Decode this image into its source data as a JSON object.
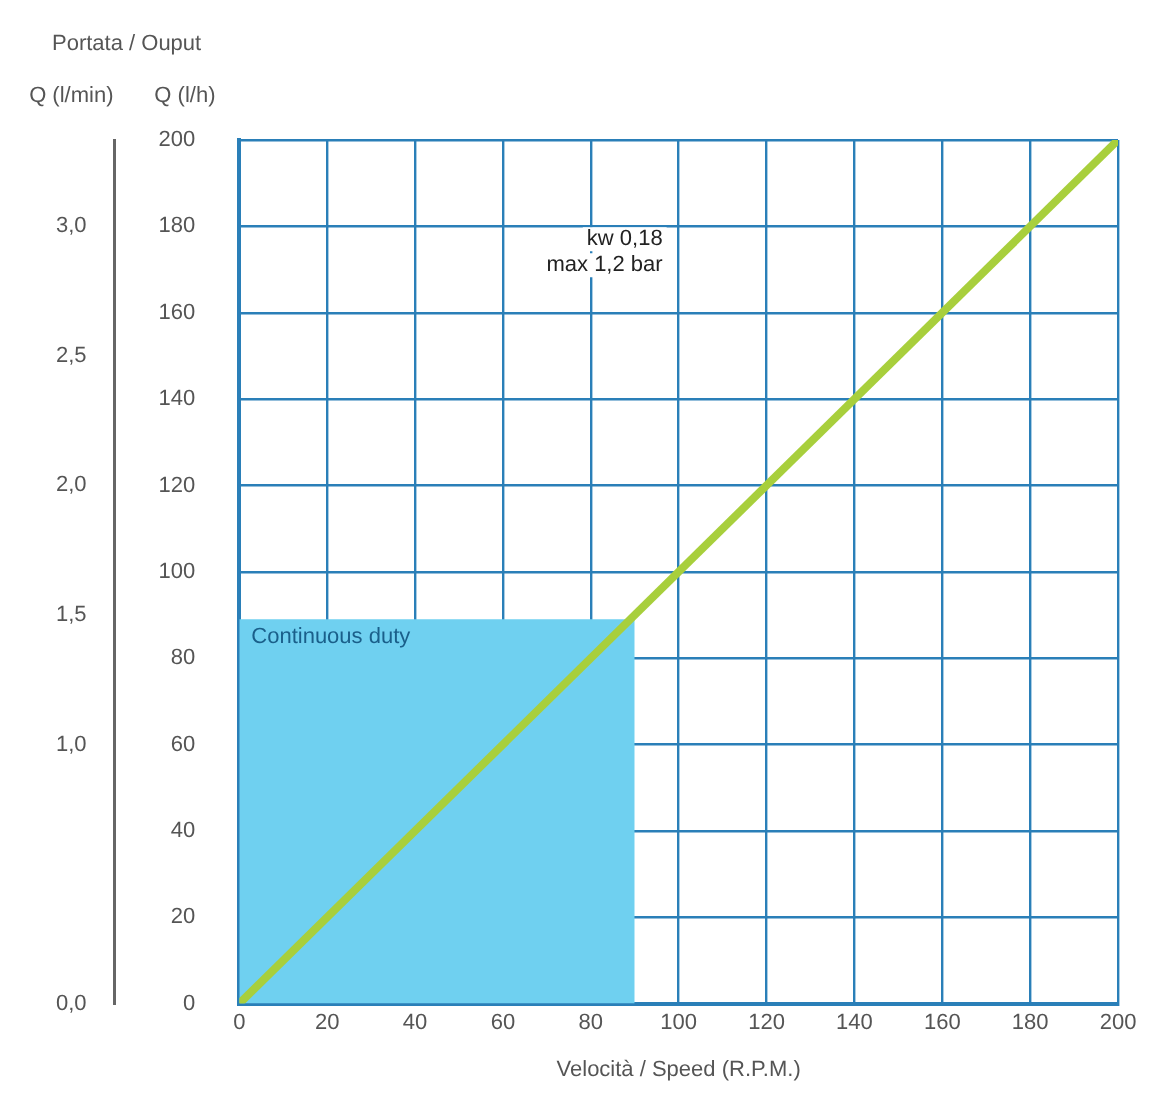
{
  "chart_data": {
    "type": "line",
    "title": "Portata / Ouput",
    "xlabel": "Velocità / Speed (R.P.M.)",
    "ylabel": "Q (l/h)",
    "y2label": "Q (l/min)",
    "annotations": [
      "kw 0,18",
      "max 1,2 bar"
    ],
    "series": [
      {
        "name": "Continuous duty",
        "type": "area",
        "color": "#6fd0f0",
        "x": [
          0,
          90
        ],
        "values": [
          89,
          89
        ]
      },
      {
        "type": "line",
        "color": "#a8cf3c",
        "x": [
          0,
          200
        ],
        "values": [
          0,
          200
        ]
      }
    ],
    "xlim": [
      0,
      200
    ],
    "xticks": [
      0,
      20,
      40,
      60,
      80,
      100,
      120,
      140,
      160,
      180,
      200
    ],
    "ylim": [
      0,
      200
    ],
    "yticks": [
      0,
      20,
      40,
      60,
      80,
      100,
      120,
      140,
      160,
      180,
      200
    ],
    "y2lim": [
      0,
      3.333
    ],
    "y2ticks": [
      {
        "value": 0,
        "label": "0,0"
      },
      {
        "value": 1,
        "label": "1,0"
      },
      {
        "value": 1.5,
        "label": "1,5"
      },
      {
        "value": 2,
        "label": "2,0"
      },
      {
        "value": 2.5,
        "label": "2,5"
      },
      {
        "value": 3,
        "label": "3,0"
      }
    ],
    "grid": true,
    "legend": false
  }
}
